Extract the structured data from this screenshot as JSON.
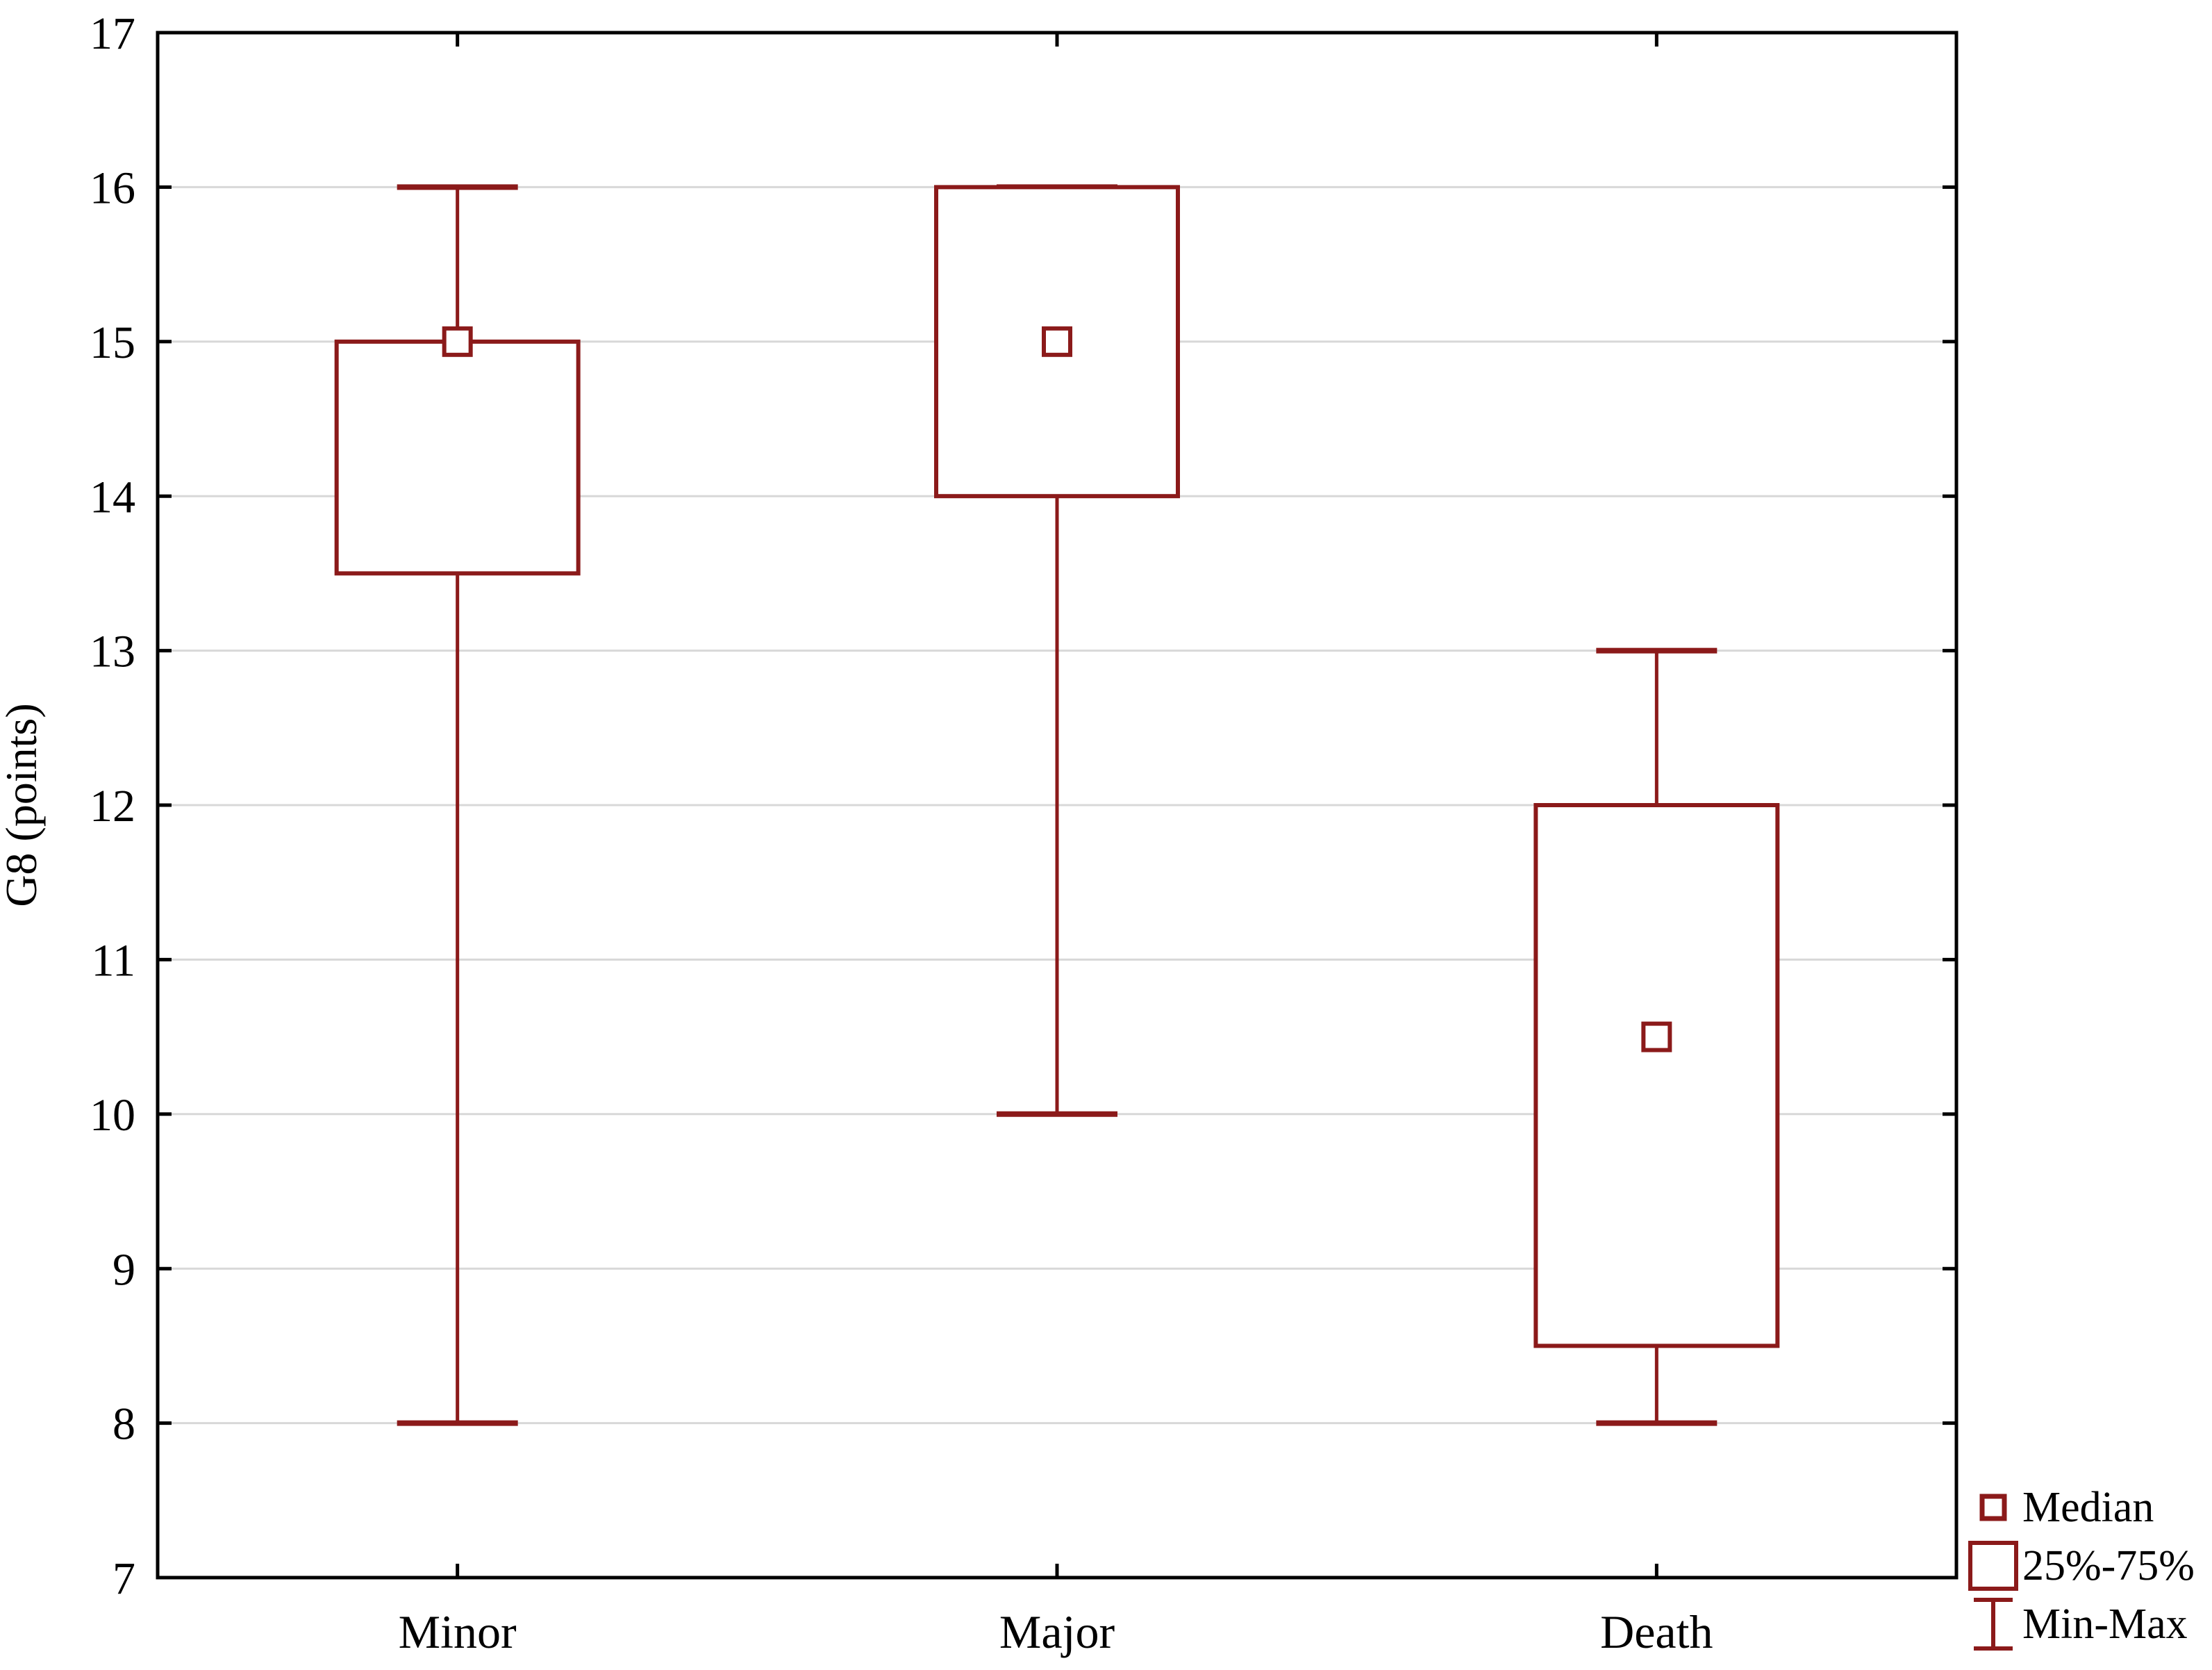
{
  "figure": {
    "background": "#ffffff"
  },
  "chart_data": {
    "type": "box",
    "title": "",
    "xlabel": "",
    "ylabel": "G8 (points)",
    "ylim": [
      7,
      17
    ],
    "y_ticks": [
      7,
      8,
      9,
      10,
      11,
      12,
      13,
      14,
      15,
      16,
      17
    ],
    "grid": "horizontal-light-gray",
    "categories": [
      "Minor",
      "Major",
      "Death"
    ],
    "series": [
      {
        "category": "Minor",
        "min": 8,
        "q1": 13.5,
        "median": 15,
        "q3": 15,
        "max": 16
      },
      {
        "category": "Major",
        "min": 10,
        "q1": 14,
        "median": 15,
        "q3": 16,
        "max": 16
      },
      {
        "category": "Death",
        "min": 8,
        "q1": 8.5,
        "median": 10.5,
        "q3": 12,
        "max": 13
      }
    ],
    "legend": {
      "position": "bottom-right",
      "items": [
        {
          "id": "median",
          "label": "Median"
        },
        {
          "id": "iqr",
          "label": "25%-75%"
        },
        {
          "id": "minmax",
          "label": "Min-Max"
        }
      ]
    },
    "colors": {
      "box": "#8b1a1a",
      "axis": "#000000",
      "grid": "#d8d8d8",
      "text": "#000000",
      "fill": "#ffffff"
    }
  }
}
